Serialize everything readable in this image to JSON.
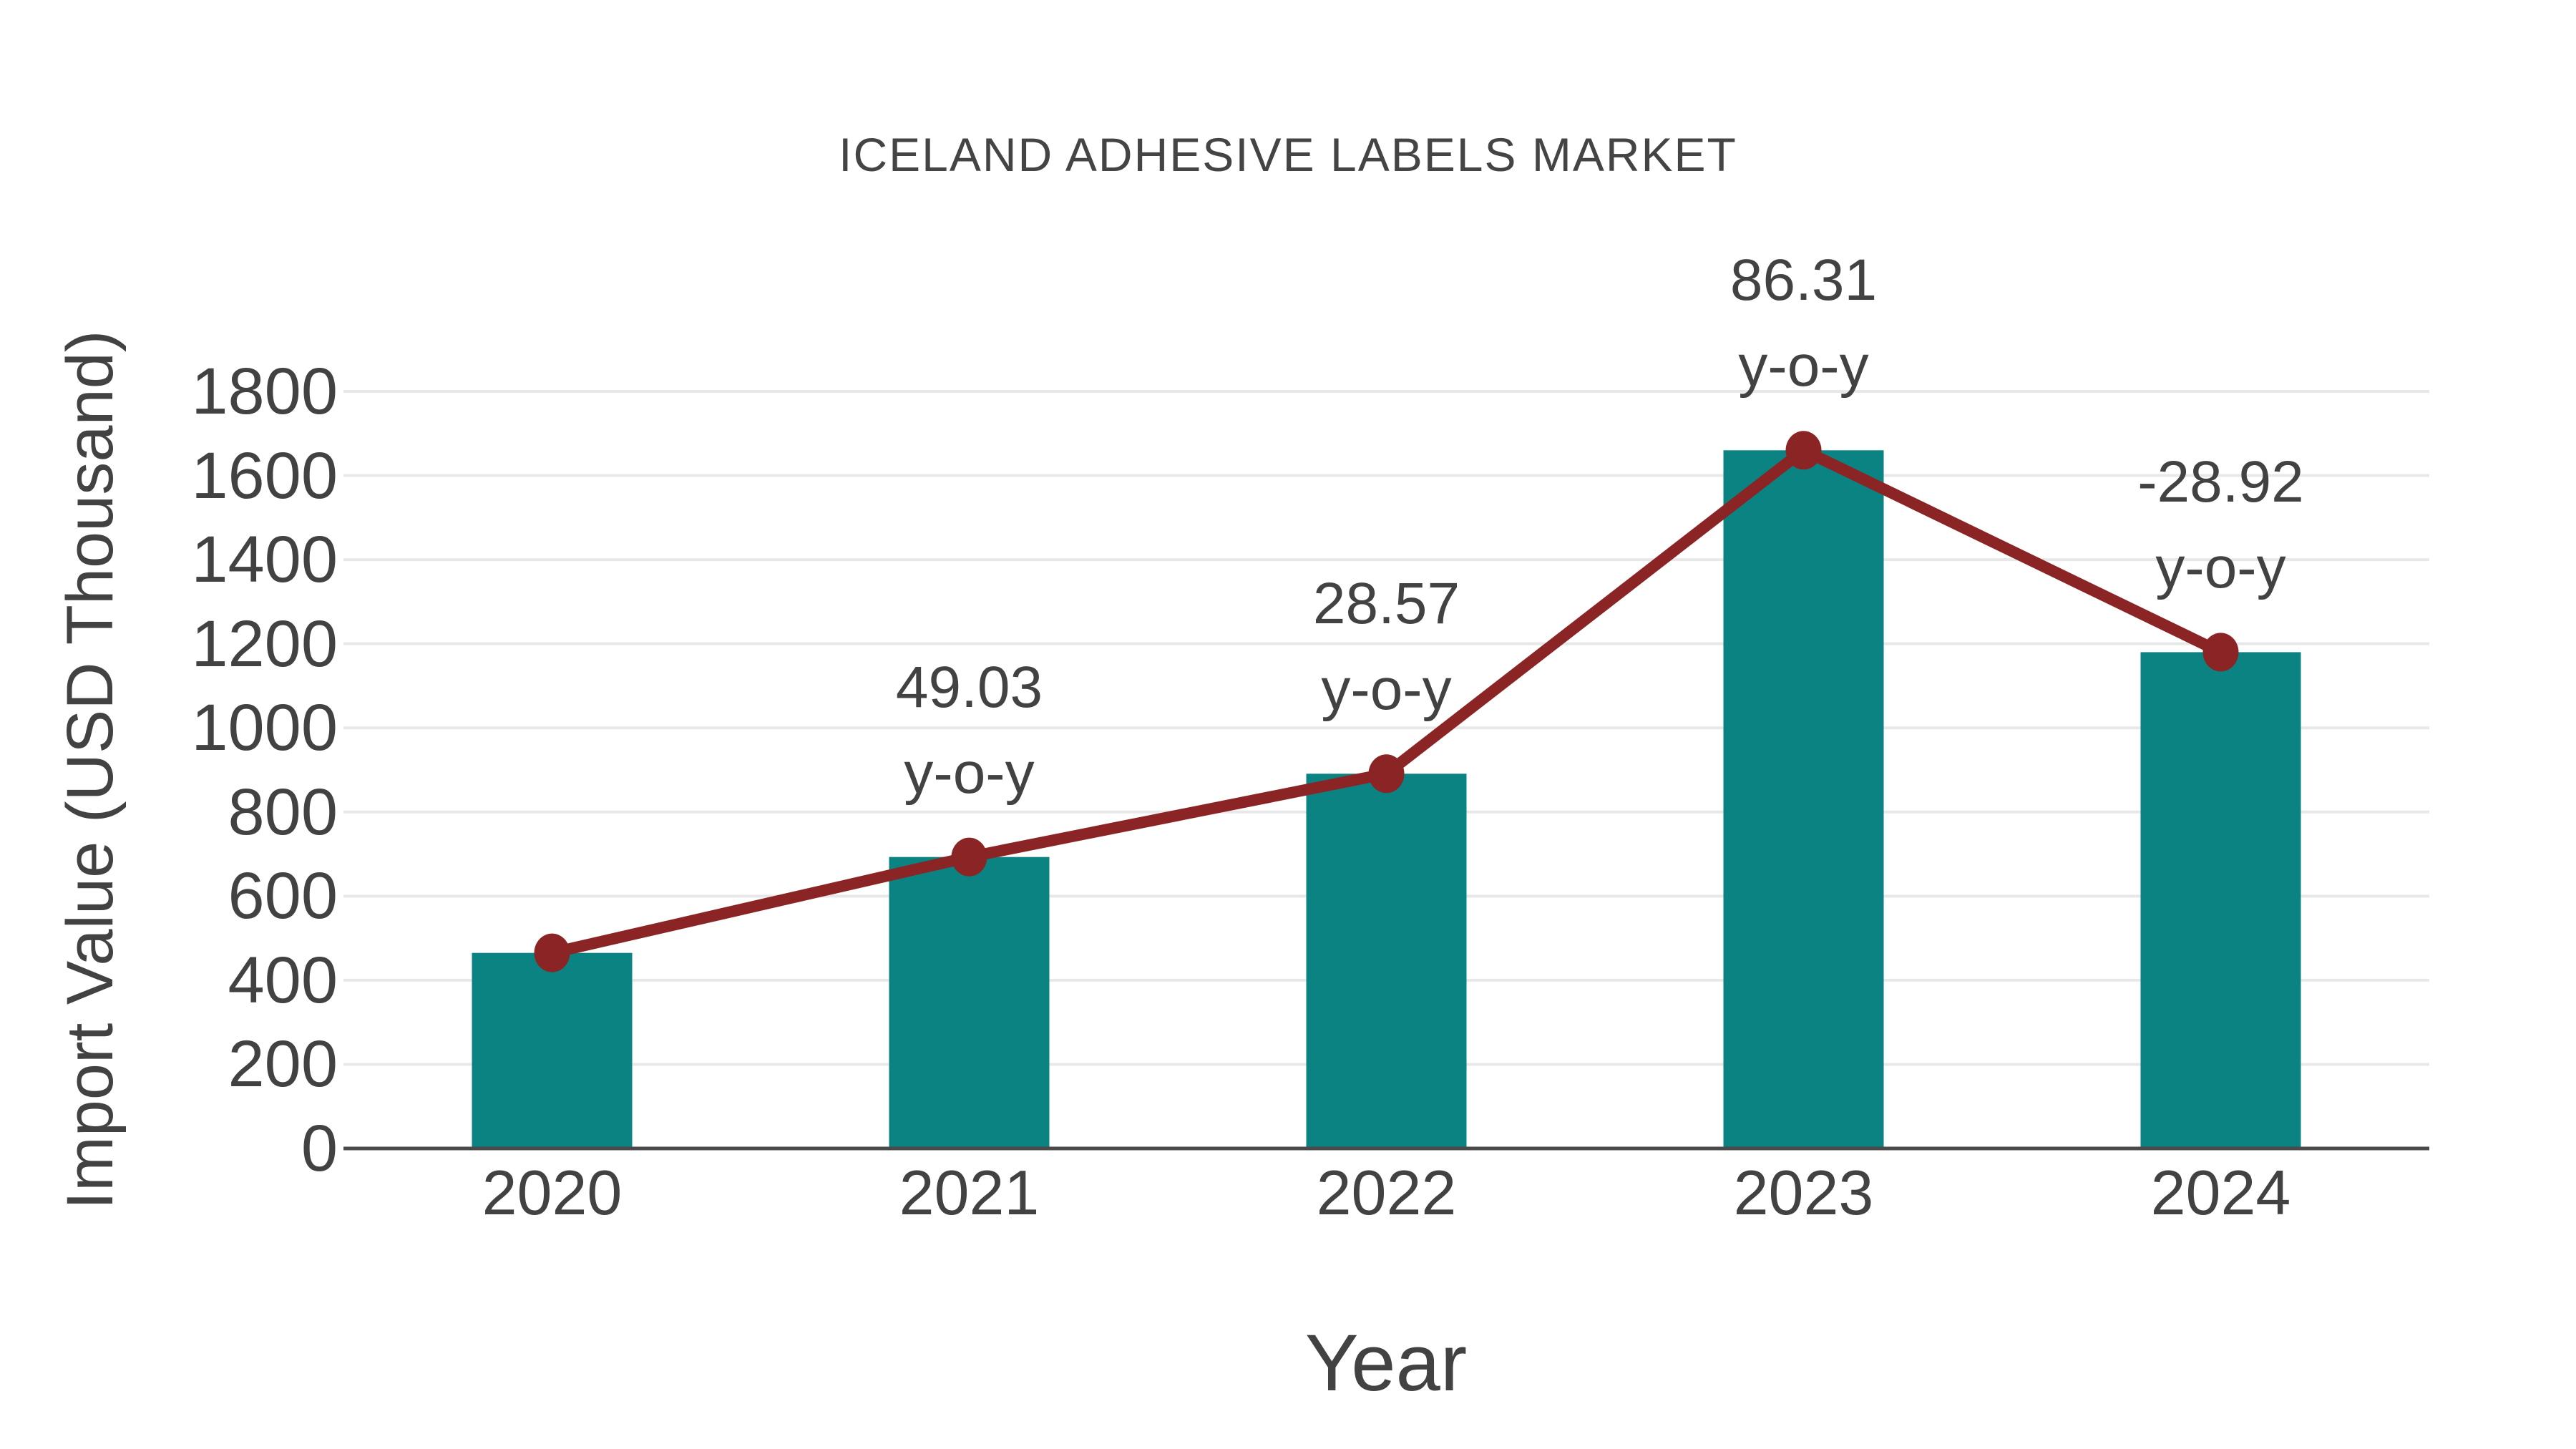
{
  "title": "ICELAND ADHESIVE LABELS MARKET",
  "chart_data": {
    "type": "bar",
    "subtype": "bar-with-line-overlay",
    "categories": [
      "2020",
      "2021",
      "2022",
      "2023",
      "2024"
    ],
    "series": [
      {
        "name": "Import Value bars",
        "type": "bar",
        "values": [
          465,
          693,
          891,
          1660,
          1180
        ]
      },
      {
        "name": "Import Value trend line",
        "type": "line",
        "values": [
          465,
          693,
          891,
          1660,
          1180
        ]
      }
    ],
    "point_labels": [
      null,
      {
        "value": "49.03",
        "suffix": "y-o-y"
      },
      {
        "value": "28.57",
        "suffix": "y-o-y"
      },
      {
        "value": "86.31",
        "suffix": "y-o-y"
      },
      {
        "value": "-28.92",
        "suffix": "y-o-y"
      }
    ],
    "xlabel": "Year",
    "ylabel": "Import Value (USD Thousand)",
    "ylim": [
      0,
      1800
    ],
    "yticks": [
      "0",
      "200",
      "400",
      "600",
      "800",
      "1000",
      "1200",
      "1400",
      "1600",
      "1800"
    ],
    "grid": true,
    "legend": "none",
    "colors": {
      "bar": "#0c8383",
      "line": "#8b2424",
      "marker": "#8b2424",
      "text": "#424242",
      "title": "#444444",
      "gridline": "#e8e8e8",
      "axis": "#4a4a4a",
      "background": "#ffffff"
    }
  }
}
